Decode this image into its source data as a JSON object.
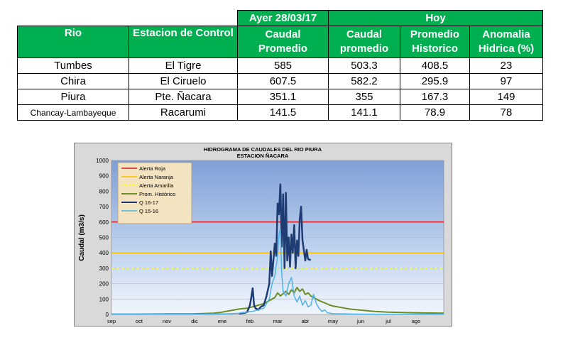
{
  "table": {
    "group_headers": {
      "ayer": "Ayer 28/03/17",
      "hoy": "Hoy"
    },
    "col_headers": {
      "rio": "Rio",
      "estacion": "Estacion de Control",
      "caudal_ayer": [
        "Caudal",
        "Promedio"
      ],
      "caudal_hoy": [
        "Caudal",
        "promedio"
      ],
      "prom_hist": [
        "Promedio",
        "Historico"
      ],
      "anomalia": [
        "Anomalia",
        "Hidrica (%)"
      ]
    },
    "rows": [
      {
        "rio": "Tumbes",
        "estacion": "El Tigre",
        "caudal_ayer": "585",
        "caudal_hoy": "503.3",
        "prom_hist": "408.5",
        "anomalia": "23"
      },
      {
        "rio": "Chira",
        "estacion": "El Ciruelo",
        "caudal_ayer": "607.5",
        "caudal_hoy": "582.2",
        "prom_hist": "295.9",
        "anomalia": "97"
      },
      {
        "rio": "Piura",
        "estacion": "Pte. Ñacara",
        "caudal_ayer": "351.1",
        "caudal_hoy": "355",
        "prom_hist": "167.3",
        "anomalia": "149"
      },
      {
        "rio": "Chancay-Lambayeque",
        "estacion": "Racarumi",
        "caudal_ayer": "141.5",
        "caudal_hoy": "141.1",
        "prom_hist": "78.9",
        "anomalia": "78"
      }
    ],
    "colors": {
      "header_green": "#00b050"
    }
  },
  "chart_data": {
    "type": "line",
    "title": "HIDROGRAMA DE CAUDALES  DEL RIO PIURA",
    "subtitle": "ESTACION ÑACARA",
    "ylabel": "Caudal (m3/s)",
    "xlabel": "",
    "ylim": [
      0,
      1000
    ],
    "yticks": [
      0,
      100,
      200,
      300,
      400,
      500,
      600,
      700,
      800,
      900,
      1000
    ],
    "xticks": [
      "sep",
      "oct",
      "nov",
      "dic",
      "ene",
      "feb",
      "mar",
      "abr",
      "may",
      "jun",
      "jul",
      "ago"
    ],
    "x_unit": "month index from sep (0=sep, 12=next sep)",
    "xlim": [
      0,
      12
    ],
    "legend_position": "top-left",
    "grid": true,
    "thresholds": [
      {
        "name": "Alerta Roja",
        "value": 600,
        "color": "#e31a1c",
        "style": "solid"
      },
      {
        "name": "Alerta Naranja",
        "value": 400,
        "color": "#ffc000",
        "style": "solid"
      },
      {
        "name": "Alerta Amarilla",
        "value": 300,
        "color": "#ffff00",
        "style": "dashed"
      }
    ],
    "series": [
      {
        "name": "Prom. Histórico",
        "color": "#6a8e23",
        "width": 2,
        "x": [
          0,
          1,
          2,
          3,
          3.7,
          4,
          4.3,
          4.6,
          4.9,
          5.1,
          5.3,
          5.5,
          5.7,
          5.9,
          6.0,
          6.1,
          6.3,
          6.4,
          6.5,
          6.6,
          6.7,
          6.8,
          6.9,
          7.0,
          7.1,
          7.2,
          7.3,
          7.5,
          7.7,
          7.9,
          8.0,
          8.3,
          8.6,
          9.0,
          9.5,
          10,
          11,
          12
        ],
        "y": [
          2,
          2,
          3,
          4,
          8,
          15,
          25,
          35,
          40,
          50,
          60,
          70,
          90,
          110,
          140,
          120,
          150,
          130,
          160,
          140,
          175,
          150,
          165,
          130,
          140,
          120,
          110,
          90,
          75,
          60,
          55,
          45,
          35,
          28,
          20,
          15,
          10,
          8
        ]
      },
      {
        "name": "Q 16-17",
        "color": "#1f3b73",
        "width": 2.5,
        "x": [
          4.6,
          4.8,
          4.9,
          5.0,
          5.05,
          5.1,
          5.15,
          5.2,
          5.3,
          5.4,
          5.5,
          5.6,
          5.7,
          5.75,
          5.8,
          5.9,
          5.95,
          6.0,
          6.05,
          6.1,
          6.15,
          6.2,
          6.25,
          6.3,
          6.35,
          6.4,
          6.45,
          6.5,
          6.55,
          6.6,
          6.65,
          6.7,
          6.75,
          6.8,
          6.85,
          6.9,
          7.0,
          7.05,
          7.1,
          7.15,
          7.2
        ],
        "y": [
          5,
          10,
          15,
          60,
          110,
          170,
          60,
          40,
          30,
          50,
          60,
          120,
          200,
          410,
          250,
          460,
          380,
          720,
          650,
          845,
          440,
          780,
          300,
          790,
          350,
          500,
          310,
          520,
          400,
          580,
          300,
          480,
          380,
          620,
          700,
          480,
          350,
          420,
          360,
          355,
          356
        ]
      },
      {
        "name": "Q 15-16",
        "color": "#4fb3e8",
        "width": 1.5,
        "x": [
          0,
          1,
          2,
          3,
          3.5,
          4,
          4.3,
          4.6,
          4.9,
          5.1,
          5.3,
          5.5,
          5.6,
          5.7,
          5.8,
          5.9,
          6.0,
          6.05,
          6.1,
          6.15,
          6.2,
          6.3,
          6.4,
          6.5,
          6.6,
          6.7,
          6.8,
          6.9,
          7.0,
          7.1,
          7.2,
          7.3,
          7.4,
          7.5,
          7.6,
          7.7,
          7.8,
          8.0,
          9,
          10,
          11,
          12
        ],
        "y": [
          1,
          1,
          1,
          1,
          2,
          3,
          5,
          8,
          15,
          20,
          30,
          40,
          70,
          100,
          200,
          250,
          380,
          520,
          550,
          260,
          150,
          120,
          200,
          240,
          120,
          80,
          120,
          60,
          90,
          50,
          60,
          130,
          70,
          40,
          20,
          30,
          10,
          5,
          2,
          1,
          1,
          1
        ]
      }
    ]
  }
}
